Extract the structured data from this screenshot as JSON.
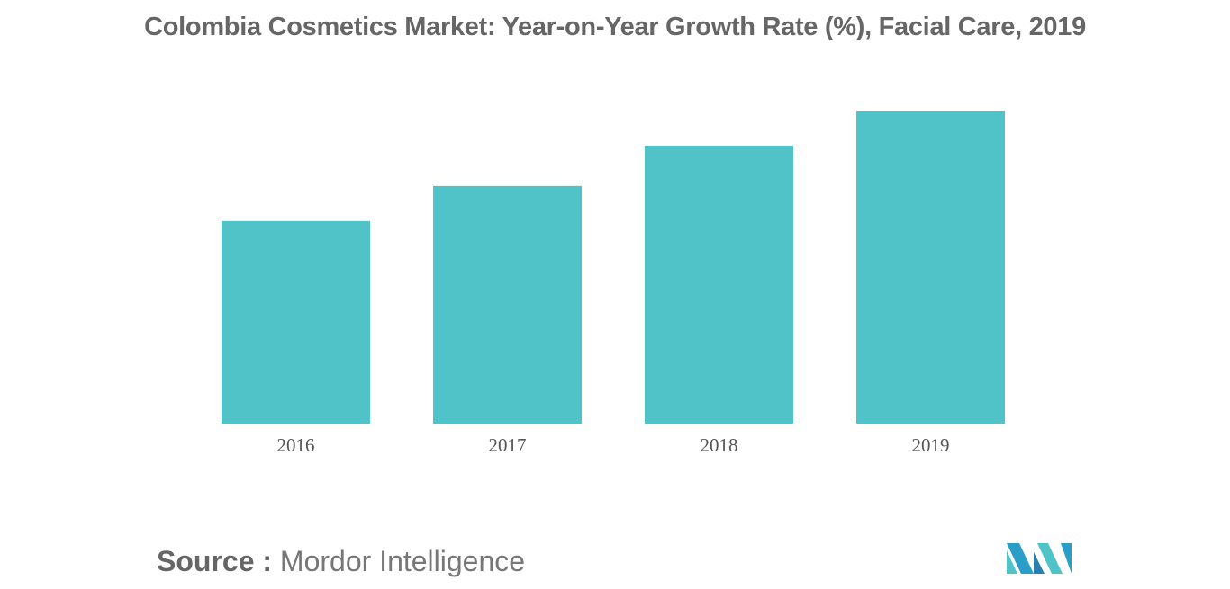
{
  "chart_data": {
    "type": "bar",
    "title": "Colombia Cosmetics Market: Year-on-Year Growth Rate (%), Facial Care, 2019",
    "categories": [
      "2016",
      "2017",
      "2018",
      "2019"
    ],
    "values": [
      64.7,
      75.9,
      88.8,
      100
    ],
    "xlabel": "",
    "ylabel": "",
    "ylim": [
      0,
      100
    ],
    "grid": false,
    "bar_color": "#50c3c9"
  },
  "source": {
    "label": "Source :",
    "text": "Mordor Intelligence"
  },
  "logo_text": "Mordor Intelligence"
}
